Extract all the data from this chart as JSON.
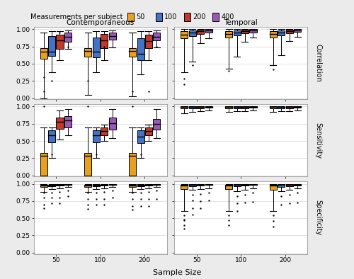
{
  "colors": {
    "50": "#E8A020",
    "100": "#4472C4",
    "200": "#C0392B",
    "400": "#9B59B6"
  },
  "legend_labels": [
    "50",
    "100",
    "200",
    "400"
  ],
  "panel_col_labels": [
    "Contemporaneous",
    "Temporal"
  ],
  "panel_row_labels": [
    "Correlation",
    "Sensitivity",
    "Specificity"
  ],
  "x_tick_labels": [
    "50",
    "100",
    "200"
  ],
  "x_label": "Sample Size",
  "yticks": [
    0.0,
    0.25,
    0.5,
    0.75,
    1.0
  ],
  "background_color": "#EBEBEB",
  "panel_bg": "#FFFFFF",
  "boxplot_data": {
    "contemporaneous": {
      "correlation": {
        "50": [
          {
            "whislo": 0.0,
            "q1": 0.57,
            "med": 0.68,
            "q3": 0.73,
            "whishi": 0.95,
            "fliers_lo": [
              0.3,
              0.1
            ],
            "fliers_hi": []
          },
          {
            "whislo": 0.38,
            "q1": 0.61,
            "med": 0.68,
            "q3": 0.9,
            "whishi": 0.97,
            "fliers_lo": [
              0.25
            ],
            "fliers_hi": []
          },
          {
            "whislo": 0.55,
            "q1": 0.72,
            "med": 0.84,
            "q3": 0.92,
            "whishi": 0.97,
            "fliers_lo": [],
            "fliers_hi": [
              0.95
            ]
          },
          {
            "whislo": 0.72,
            "q1": 0.82,
            "med": 0.89,
            "q3": 0.95,
            "whishi": 0.98,
            "fliers_lo": [],
            "fliers_hi": [
              0.75
            ]
          }
        ],
        "100": [
          {
            "whislo": 0.05,
            "q1": 0.6,
            "med": 0.69,
            "q3": 0.73,
            "whishi": 0.95,
            "fliers_lo": [
              0.25
            ],
            "fliers_hi": []
          },
          {
            "whislo": 0.38,
            "q1": 0.59,
            "med": 0.67,
            "q3": 0.88,
            "whishi": 0.97,
            "fliers_lo": [],
            "fliers_hi": []
          },
          {
            "whislo": 0.55,
            "q1": 0.73,
            "med": 0.84,
            "q3": 0.93,
            "whishi": 0.97,
            "fliers_lo": [],
            "fliers_hi": [
              0.75
            ]
          },
          {
            "whislo": 0.74,
            "q1": 0.85,
            "med": 0.9,
            "q3": 0.95,
            "whishi": 0.98,
            "fliers_lo": [],
            "fliers_hi": []
          }
        ],
        "200": [
          {
            "whislo": 0.03,
            "q1": 0.6,
            "med": 0.69,
            "q3": 0.73,
            "whishi": 0.95,
            "fliers_lo": [
              0.1
            ],
            "fliers_hi": []
          },
          {
            "whislo": 0.35,
            "q1": 0.55,
            "med": 0.64,
            "q3": 0.87,
            "whishi": 0.97,
            "fliers_lo": [],
            "fliers_hi": []
          },
          {
            "whislo": 0.55,
            "q1": 0.73,
            "med": 0.83,
            "q3": 0.92,
            "whishi": 0.97,
            "fliers_lo": [],
            "fliers_hi": [
              0.1
            ]
          },
          {
            "whislo": 0.74,
            "q1": 0.84,
            "med": 0.89,
            "q3": 0.95,
            "whishi": 0.98,
            "fliers_lo": [],
            "fliers_hi": [
              0.75
            ]
          }
        ]
      },
      "sensitivity": {
        "50": [
          {
            "whislo": 0.0,
            "q1": 0.0,
            "med": 0.28,
            "q3": 0.33,
            "whishi": 0.7,
            "fliers_lo": [],
            "fliers_hi": [
              1.0
            ]
          },
          {
            "whislo": 0.25,
            "q1": 0.48,
            "med": 0.58,
            "q3": 0.65,
            "whishi": 0.7,
            "fliers_lo": [],
            "fliers_hi": [
              0.3
            ]
          },
          {
            "whislo": 0.52,
            "q1": 0.68,
            "med": 0.78,
            "q3": 0.84,
            "whishi": 0.94,
            "fliers_lo": [],
            "fliers_hi": []
          },
          {
            "whislo": 0.58,
            "q1": 0.7,
            "med": 0.8,
            "q3": 0.86,
            "whishi": 0.96,
            "fliers_lo": [],
            "fliers_hi": []
          }
        ],
        "100": [
          {
            "whislo": 0.0,
            "q1": 0.0,
            "med": 0.28,
            "q3": 0.33,
            "whishi": 0.7,
            "fliers_lo": [],
            "fliers_hi": [
              1.0
            ]
          },
          {
            "whislo": 0.25,
            "q1": 0.48,
            "med": 0.58,
            "q3": 0.65,
            "whishi": 0.7,
            "fliers_lo": [],
            "fliers_hi": [
              0.3
            ]
          },
          {
            "whislo": 0.5,
            "q1": 0.58,
            "med": 0.64,
            "q3": 0.7,
            "whishi": 0.74,
            "fliers_lo": [],
            "fliers_hi": []
          },
          {
            "whislo": 0.54,
            "q1": 0.66,
            "med": 0.76,
            "q3": 0.84,
            "whishi": 0.96,
            "fliers_lo": [],
            "fliers_hi": []
          }
        ],
        "200": [
          {
            "whislo": 0.0,
            "q1": 0.0,
            "med": 0.28,
            "q3": 0.33,
            "whishi": 0.7,
            "fliers_lo": [],
            "fliers_hi": [
              1.0
            ]
          },
          {
            "whislo": 0.25,
            "q1": 0.47,
            "med": 0.56,
            "q3": 0.65,
            "whishi": 0.7,
            "fliers_lo": [],
            "fliers_hi": [
              0.3
            ]
          },
          {
            "whislo": 0.5,
            "q1": 0.58,
            "med": 0.64,
            "q3": 0.7,
            "whishi": 0.74,
            "fliers_lo": [],
            "fliers_hi": []
          },
          {
            "whislo": 0.54,
            "q1": 0.66,
            "med": 0.75,
            "q3": 0.82,
            "whishi": 0.96,
            "fliers_lo": [],
            "fliers_hi": []
          }
        ]
      },
      "specificity": {
        "50": [
          {
            "whislo": 0.88,
            "q1": 0.95,
            "med": 0.975,
            "q3": 0.99,
            "whishi": 1.0,
            "fliers_lo": [
              0.87,
              0.8,
              0.7,
              0.65
            ],
            "fliers_hi": []
          },
          {
            "whislo": 0.92,
            "q1": 0.96,
            "med": 0.975,
            "q3": 0.99,
            "whishi": 1.0,
            "fliers_lo": [
              0.87,
              0.8,
              0.72
            ],
            "fliers_hi": []
          },
          {
            "whislo": 0.93,
            "q1": 0.97,
            "med": 0.985,
            "q3": 1.0,
            "whishi": 1.0,
            "fliers_lo": [
              0.88,
              0.8,
              0.72
            ],
            "fliers_hi": []
          },
          {
            "whislo": 0.95,
            "q1": 0.98,
            "med": 0.99,
            "q3": 1.0,
            "whishi": 1.0,
            "fliers_lo": [
              0.9,
              0.82
            ],
            "fliers_hi": []
          }
        ],
        "100": [
          {
            "whislo": 0.88,
            "q1": 0.95,
            "med": 0.975,
            "q3": 0.99,
            "whishi": 1.0,
            "fliers_lo": [
              0.87,
              0.78,
              0.7,
              0.63
            ],
            "fliers_hi": []
          },
          {
            "whislo": 0.92,
            "q1": 0.96,
            "med": 0.975,
            "q3": 0.99,
            "whishi": 1.0,
            "fliers_lo": [
              0.87,
              0.78,
              0.7
            ],
            "fliers_hi": []
          },
          {
            "whislo": 0.93,
            "q1": 0.97,
            "med": 0.985,
            "q3": 1.0,
            "whishi": 1.0,
            "fliers_lo": [
              0.88,
              0.78,
              0.7
            ],
            "fliers_hi": []
          },
          {
            "whislo": 0.95,
            "q1": 0.98,
            "med": 0.99,
            "q3": 1.0,
            "whishi": 1.0,
            "fliers_lo": [
              0.9,
              0.8
            ],
            "fliers_hi": []
          }
        ],
        "200": [
          {
            "whislo": 0.88,
            "q1": 0.95,
            "med": 0.975,
            "q3": 0.99,
            "whishi": 1.0,
            "fliers_lo": [
              0.87,
              0.78,
              0.68,
              0.62
            ],
            "fliers_hi": []
          },
          {
            "whislo": 0.92,
            "q1": 0.96,
            "med": 0.975,
            "q3": 0.99,
            "whishi": 1.0,
            "fliers_lo": [
              0.87,
              0.78,
              0.68
            ],
            "fliers_hi": []
          },
          {
            "whislo": 0.93,
            "q1": 0.97,
            "med": 0.985,
            "q3": 1.0,
            "whishi": 1.0,
            "fliers_lo": [
              0.88,
              0.78,
              0.68
            ],
            "fliers_hi": []
          },
          {
            "whislo": 0.95,
            "q1": 0.98,
            "med": 0.99,
            "q3": 1.0,
            "whishi": 1.0,
            "fliers_lo": [
              0.9,
              0.78
            ],
            "fliers_hi": []
          }
        ]
      }
    },
    "temporal": {
      "correlation": {
        "50": [
          {
            "whislo": 0.38,
            "q1": 0.87,
            "med": 0.92,
            "q3": 0.97,
            "whishi": 1.0,
            "fliers_lo": [
              0.28,
              0.2
            ],
            "fliers_hi": []
          },
          {
            "whislo": 0.53,
            "q1": 0.9,
            "med": 0.95,
            "q3": 0.98,
            "whishi": 1.0,
            "fliers_lo": [
              0.48
            ],
            "fliers_hi": []
          },
          {
            "whislo": 0.8,
            "q1": 0.93,
            "med": 0.97,
            "q3": 0.99,
            "whishi": 1.0,
            "fliers_lo": [],
            "fliers_hi": []
          },
          {
            "whislo": 0.87,
            "q1": 0.95,
            "med": 0.98,
            "q3": 1.0,
            "whishi": 1.0,
            "fliers_lo": [],
            "fliers_hi": []
          }
        ],
        "100": [
          {
            "whislo": 0.43,
            "q1": 0.88,
            "med": 0.93,
            "q3": 0.97,
            "whishi": 1.0,
            "fliers_lo": [
              0.4
            ],
            "fliers_hi": []
          },
          {
            "whislo": 0.6,
            "q1": 0.91,
            "med": 0.95,
            "q3": 0.98,
            "whishi": 1.0,
            "fliers_lo": [],
            "fliers_hi": []
          },
          {
            "whislo": 0.82,
            "q1": 0.94,
            "med": 0.97,
            "q3": 0.99,
            "whishi": 1.0,
            "fliers_lo": [],
            "fliers_hi": []
          },
          {
            "whislo": 0.88,
            "q1": 0.95,
            "med": 0.98,
            "q3": 1.0,
            "whishi": 1.0,
            "fliers_lo": [],
            "fliers_hi": []
          }
        ],
        "200": [
          {
            "whislo": 0.48,
            "q1": 0.88,
            "med": 0.93,
            "q3": 0.97,
            "whishi": 1.0,
            "fliers_lo": [
              0.42
            ],
            "fliers_hi": []
          },
          {
            "whislo": 0.62,
            "q1": 0.91,
            "med": 0.95,
            "q3": 0.98,
            "whishi": 1.0,
            "fliers_lo": [],
            "fliers_hi": []
          },
          {
            "whislo": 0.83,
            "q1": 0.94,
            "med": 0.97,
            "q3": 0.99,
            "whishi": 1.0,
            "fliers_lo": [],
            "fliers_hi": []
          },
          {
            "whislo": 0.89,
            "q1": 0.96,
            "med": 0.98,
            "q3": 1.0,
            "whishi": 1.0,
            "fliers_lo": [],
            "fliers_hi": []
          }
        ]
      },
      "sensitivity": {
        "50": [
          {
            "whislo": 0.9,
            "q1": 0.97,
            "med": 0.99,
            "q3": 1.0,
            "whishi": 1.0,
            "fliers_lo": [],
            "fliers_hi": []
          },
          {
            "whislo": 0.92,
            "q1": 0.97,
            "med": 0.99,
            "q3": 1.0,
            "whishi": 1.0,
            "fliers_lo": [],
            "fliers_hi": []
          },
          {
            "whislo": 0.93,
            "q1": 0.97,
            "med": 0.99,
            "q3": 1.0,
            "whishi": 1.0,
            "fliers_lo": [],
            "fliers_hi": []
          },
          {
            "whislo": 0.94,
            "q1": 0.98,
            "med": 0.99,
            "q3": 1.0,
            "whishi": 1.0,
            "fliers_lo": [],
            "fliers_hi": []
          }
        ],
        "100": [
          {
            "whislo": 0.92,
            "q1": 0.97,
            "med": 0.99,
            "q3": 1.0,
            "whishi": 1.0,
            "fliers_lo": [],
            "fliers_hi": []
          },
          {
            "whislo": 0.93,
            "q1": 0.97,
            "med": 0.99,
            "q3": 1.0,
            "whishi": 1.0,
            "fliers_lo": [],
            "fliers_hi": []
          },
          {
            "whislo": 0.93,
            "q1": 0.97,
            "med": 0.99,
            "q3": 1.0,
            "whishi": 1.0,
            "fliers_lo": [],
            "fliers_hi": []
          },
          {
            "whislo": 0.94,
            "q1": 0.98,
            "med": 0.99,
            "q3": 1.0,
            "whishi": 1.0,
            "fliers_lo": [],
            "fliers_hi": []
          }
        ],
        "200": [
          {
            "whislo": 0.92,
            "q1": 0.97,
            "med": 0.99,
            "q3": 1.0,
            "whishi": 1.0,
            "fliers_lo": [],
            "fliers_hi": []
          },
          {
            "whislo": 0.93,
            "q1": 0.97,
            "med": 0.99,
            "q3": 1.0,
            "whishi": 1.0,
            "fliers_lo": [],
            "fliers_hi": []
          },
          {
            "whislo": 0.93,
            "q1": 0.97,
            "med": 0.99,
            "q3": 1.0,
            "whishi": 1.0,
            "fliers_lo": [],
            "fliers_hi": []
          },
          {
            "whislo": 0.94,
            "q1": 0.98,
            "med": 0.99,
            "q3": 1.0,
            "whishi": 1.0,
            "fliers_lo": [],
            "fliers_hi": []
          }
        ]
      },
      "specificity": {
        "50": [
          {
            "whislo": 0.6,
            "q1": 0.92,
            "med": 0.97,
            "q3": 0.99,
            "whishi": 1.0,
            "fliers_lo": [
              0.54,
              0.47,
              0.4,
              0.35,
              0.48
            ],
            "fliers_hi": []
          },
          {
            "whislo": 0.91,
            "q1": 0.96,
            "med": 0.99,
            "q3": 1.0,
            "whishi": 1.0,
            "fliers_lo": [
              0.84,
              0.76,
              0.65,
              0.55
            ],
            "fliers_hi": []
          },
          {
            "whislo": 0.92,
            "q1": 0.97,
            "med": 0.99,
            "q3": 1.0,
            "whishi": 1.0,
            "fliers_lo": [
              0.85,
              0.75,
              0.65
            ],
            "fliers_hi": []
          },
          {
            "whislo": 0.93,
            "q1": 0.98,
            "med": 0.99,
            "q3": 1.0,
            "whishi": 1.0,
            "fliers_lo": [
              0.87,
              0.76
            ],
            "fliers_hi": []
          }
        ],
        "100": [
          {
            "whislo": 0.6,
            "q1": 0.92,
            "med": 0.97,
            "q3": 0.99,
            "whishi": 1.0,
            "fliers_lo": [
              0.54,
              0.47,
              0.4
            ],
            "fliers_hi": []
          },
          {
            "whislo": 0.89,
            "q1": 0.96,
            "med": 0.99,
            "q3": 1.0,
            "whishi": 1.0,
            "fliers_lo": [
              0.82,
              0.72,
              0.6
            ],
            "fliers_hi": []
          },
          {
            "whislo": 0.91,
            "q1": 0.97,
            "med": 0.99,
            "q3": 1.0,
            "whishi": 1.0,
            "fliers_lo": [
              0.84,
              0.73
            ],
            "fliers_hi": []
          },
          {
            "whislo": 0.93,
            "q1": 0.98,
            "med": 0.99,
            "q3": 1.0,
            "whishi": 1.0,
            "fliers_lo": [
              0.87,
              0.74
            ],
            "fliers_hi": []
          }
        ],
        "200": [
          {
            "whislo": 0.6,
            "q1": 0.91,
            "med": 0.97,
            "q3": 0.99,
            "whishi": 1.0,
            "fliers_lo": [
              0.54,
              0.46,
              0.38
            ],
            "fliers_hi": []
          },
          {
            "whislo": 0.89,
            "q1": 0.95,
            "med": 0.98,
            "q3": 1.0,
            "whishi": 1.0,
            "fliers_lo": [
              0.82,
              0.7
            ],
            "fliers_hi": []
          },
          {
            "whislo": 0.91,
            "q1": 0.96,
            "med": 0.99,
            "q3": 1.0,
            "whishi": 1.0,
            "fliers_lo": [
              0.84,
              0.72
            ],
            "fliers_hi": []
          },
          {
            "whislo": 0.93,
            "q1": 0.97,
            "med": 0.99,
            "q3": 1.0,
            "whishi": 1.0,
            "fliers_lo": [
              0.87,
              0.73
            ],
            "fliers_hi": []
          }
        ]
      }
    }
  }
}
